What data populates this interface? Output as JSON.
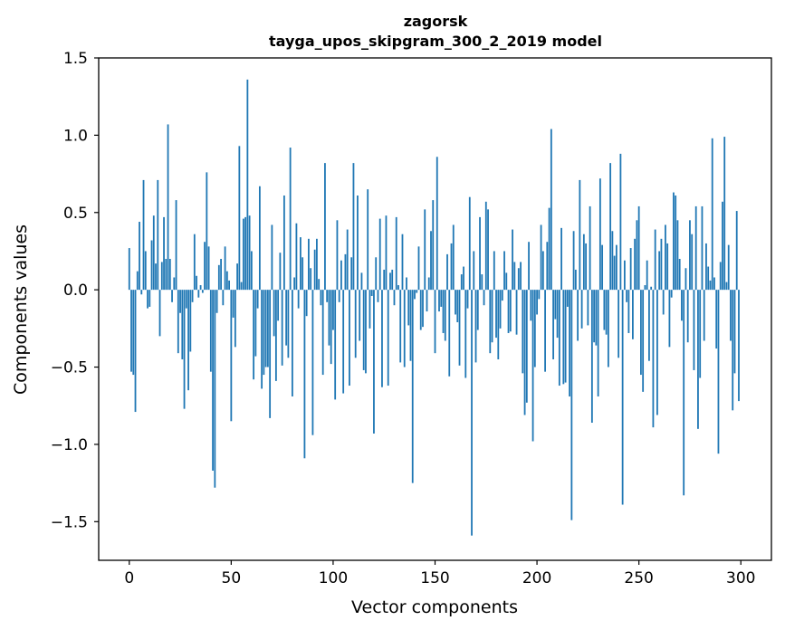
{
  "chart_data": {
    "type": "bar",
    "title": "zagorsk",
    "subtitle": "tayga_upos_skipgram_300_2_2019 model",
    "xlabel": "Vector components",
    "ylabel": "Components values",
    "xlim": [
      -15,
      315
    ],
    "ylim": [
      -1.75,
      1.5
    ],
    "xticks": [
      0,
      50,
      100,
      150,
      200,
      250,
      300
    ],
    "xtick_labels": [
      "0",
      "50",
      "100",
      "150",
      "200",
      "250",
      "300"
    ],
    "yticks": [
      -1.5,
      -1.0,
      -0.5,
      0.0,
      0.5,
      1.0,
      1.5
    ],
    "ytick_labels": [
      "−1.5",
      "−1.0",
      "−0.5",
      "0.0",
      "0.5",
      "1.0",
      "1.5"
    ],
    "bar_color": "#1f77b4",
    "grid": false,
    "x": [
      0,
      1,
      2,
      3,
      4,
      5,
      6,
      7,
      8,
      9,
      10,
      11,
      12,
      13,
      14,
      15,
      16,
      17,
      18,
      19,
      20,
      21,
      22,
      23,
      24,
      25,
      26,
      27,
      28,
      29,
      30,
      31,
      32,
      33,
      34,
      35,
      36,
      37,
      38,
      39,
      40,
      41,
      42,
      43,
      44,
      45,
      46,
      47,
      48,
      49,
      50,
      51,
      52,
      53,
      54,
      55,
      56,
      57,
      58,
      59,
      60,
      61,
      62,
      63,
      64,
      65,
      66,
      67,
      68,
      69,
      70,
      71,
      72,
      73,
      74,
      75,
      76,
      77,
      78,
      79,
      80,
      81,
      82,
      83,
      84,
      85,
      86,
      87,
      88,
      89,
      90,
      91,
      92,
      93,
      94,
      95,
      96,
      97,
      98,
      99,
      100,
      101,
      102,
      103,
      104,
      105,
      106,
      107,
      108,
      109,
      110,
      111,
      112,
      113,
      114,
      115,
      116,
      117,
      118,
      119,
      120,
      121,
      122,
      123,
      124,
      125,
      126,
      127,
      128,
      129,
      130,
      131,
      132,
      133,
      134,
      135,
      136,
      137,
      138,
      139,
      140,
      141,
      142,
      143,
      144,
      145,
      146,
      147,
      148,
      149,
      150,
      151,
      152,
      153,
      154,
      155,
      156,
      157,
      158,
      159,
      160,
      161,
      162,
      163,
      164,
      165,
      166,
      167,
      168,
      169,
      170,
      171,
      172,
      173,
      174,
      175,
      176,
      177,
      178,
      179,
      180,
      181,
      182,
      183,
      184,
      185,
      186,
      187,
      188,
      189,
      190,
      191,
      192,
      193,
      194,
      195,
      196,
      197,
      198,
      199,
      200,
      201,
      202,
      203,
      204,
      205,
      206,
      207,
      208,
      209,
      210,
      211,
      212,
      213,
      214,
      215,
      216,
      217,
      218,
      219,
      220,
      221,
      222,
      223,
      224,
      225,
      226,
      227,
      228,
      229,
      230,
      231,
      232,
      233,
      234,
      235,
      236,
      237,
      238,
      239,
      240,
      241,
      242,
      243,
      244,
      245,
      246,
      247,
      248,
      249,
      250,
      251,
      252,
      253,
      254,
      255,
      256,
      257,
      258,
      259,
      260,
      261,
      262,
      263,
      264,
      265,
      266,
      267,
      268,
      269,
      270,
      271,
      272,
      273,
      274,
      275,
      276,
      277,
      278,
      279,
      280,
      281,
      282,
      283,
      284,
      285,
      286,
      287,
      288,
      289,
      290,
      291,
      292,
      293,
      294,
      295,
      296,
      297,
      298,
      299
    ],
    "values": [
      0.27,
      -0.53,
      -0.55,
      -0.79,
      0.12,
      0.44,
      -0.03,
      0.71,
      0.25,
      -0.12,
      -0.11,
      0.32,
      0.48,
      0.17,
      0.71,
      -0.3,
      0.18,
      0.47,
      0.2,
      1.07,
      0.2,
      -0.08,
      0.08,
      0.58,
      -0.41,
      -0.15,
      -0.45,
      -0.77,
      -0.12,
      -0.65,
      -0.4,
      -0.08,
      0.36,
      0.09,
      -0.05,
      0.03,
      -0.02,
      0.31,
      0.76,
      0.28,
      -0.53,
      -1.17,
      -1.28,
      -0.15,
      0.16,
      0.2,
      -0.1,
      0.28,
      0.12,
      0.06,
      -0.85,
      -0.18,
      -0.37,
      0.17,
      0.93,
      0.05,
      0.46,
      0.47,
      1.36,
      0.48,
      0.25,
      -0.58,
      -0.43,
      -0.12,
      0.67,
      -0.64,
      -0.55,
      -0.5,
      -0.5,
      -0.83,
      0.42,
      -0.3,
      -0.59,
      -0.2,
      0.24,
      -0.49,
      0.61,
      -0.36,
      -0.44,
      0.92,
      -0.69,
      0.08,
      0.43,
      -0.12,
      0.34,
      0.21,
      -1.09,
      -0.17,
      0.33,
      0.14,
      -0.94,
      0.26,
      0.33,
      0.07,
      -0.1,
      -0.55,
      0.82,
      -0.08,
      -0.36,
      -0.48,
      -0.26,
      -0.71,
      0.45,
      -0.08,
      0.19,
      -0.67,
      0.23,
      0.39,
      -0.62,
      0.21,
      0.82,
      -0.44,
      0.61,
      -0.33,
      0.11,
      -0.52,
      -0.54,
      0.65,
      -0.25,
      -0.04,
      -0.93,
      0.21,
      -0.08,
      0.46,
      -0.63,
      0.13,
      0.48,
      -0.62,
      0.11,
      0.13,
      -0.1,
      0.47,
      0.03,
      -0.47,
      0.36,
      -0.5,
      0.08,
      -0.23,
      -0.46,
      -1.25,
      -0.06,
      -0.02,
      0.28,
      -0.26,
      -0.24,
      0.52,
      -0.14,
      0.08,
      0.38,
      0.58,
      -0.41,
      0.86,
      -0.14,
      -0.11,
      -0.28,
      -0.33,
      0.23,
      -0.56,
      0.3,
      0.42,
      -0.16,
      -0.21,
      -0.49,
      0.1,
      0.15,
      -0.57,
      -0.12,
      0.6,
      -1.59,
      0.25,
      -0.47,
      -0.26,
      0.47,
      0.1,
      -0.1,
      0.57,
      0.52,
      -0.41,
      -0.34,
      0.25,
      -0.31,
      -0.45,
      -0.25,
      -0.07,
      0.25,
      0.11,
      -0.28,
      -0.27,
      0.39,
      0.18,
      -0.29,
      0.14,
      0.18,
      -0.54,
      -0.81,
      -0.73,
      0.31,
      -0.2,
      -0.98,
      -0.5,
      -0.16,
      -0.06,
      0.42,
      0.25,
      -0.53,
      0.31,
      0.53,
      1.04,
      -0.45,
      -0.19,
      -0.31,
      -0.62,
      0.4,
      -0.61,
      -0.6,
      -0.11,
      -0.69,
      -1.49,
      0.38,
      0.13,
      -0.33,
      0.71,
      -0.25,
      0.36,
      0.3,
      -0.23,
      0.54,
      -0.86,
      -0.34,
      -0.36,
      -0.69,
      0.72,
      0.29,
      -0.26,
      -0.29,
      -0.5,
      0.82,
      0.38,
      0.22,
      0.29,
      -0.44,
      0.88,
      -1.39,
      0.19,
      -0.08,
      -0.28,
      0.27,
      -0.32,
      0.33,
      0.45,
      0.54,
      -0.55,
      -0.66,
      0.03,
      0.19,
      -0.46,
      0.02,
      -0.89,
      0.39,
      -0.81,
      0.25,
      0.33,
      -0.16,
      0.42,
      0.3,
      -0.37,
      -0.05,
      0.63,
      0.61,
      0.45,
      0.2,
      -0.2,
      -1.33,
      0.14,
      -0.34,
      0.45,
      0.36,
      -0.52,
      0.54,
      -0.9,
      -0.57,
      0.54,
      -0.33,
      0.3,
      0.15,
      0.06,
      0.98,
      0.08,
      -0.38,
      -1.06,
      0.18,
      0.57,
      0.99,
      0.05,
      0.29,
      -0.33,
      -0.78,
      -0.54,
      0.51,
      -0.72
    ]
  }
}
